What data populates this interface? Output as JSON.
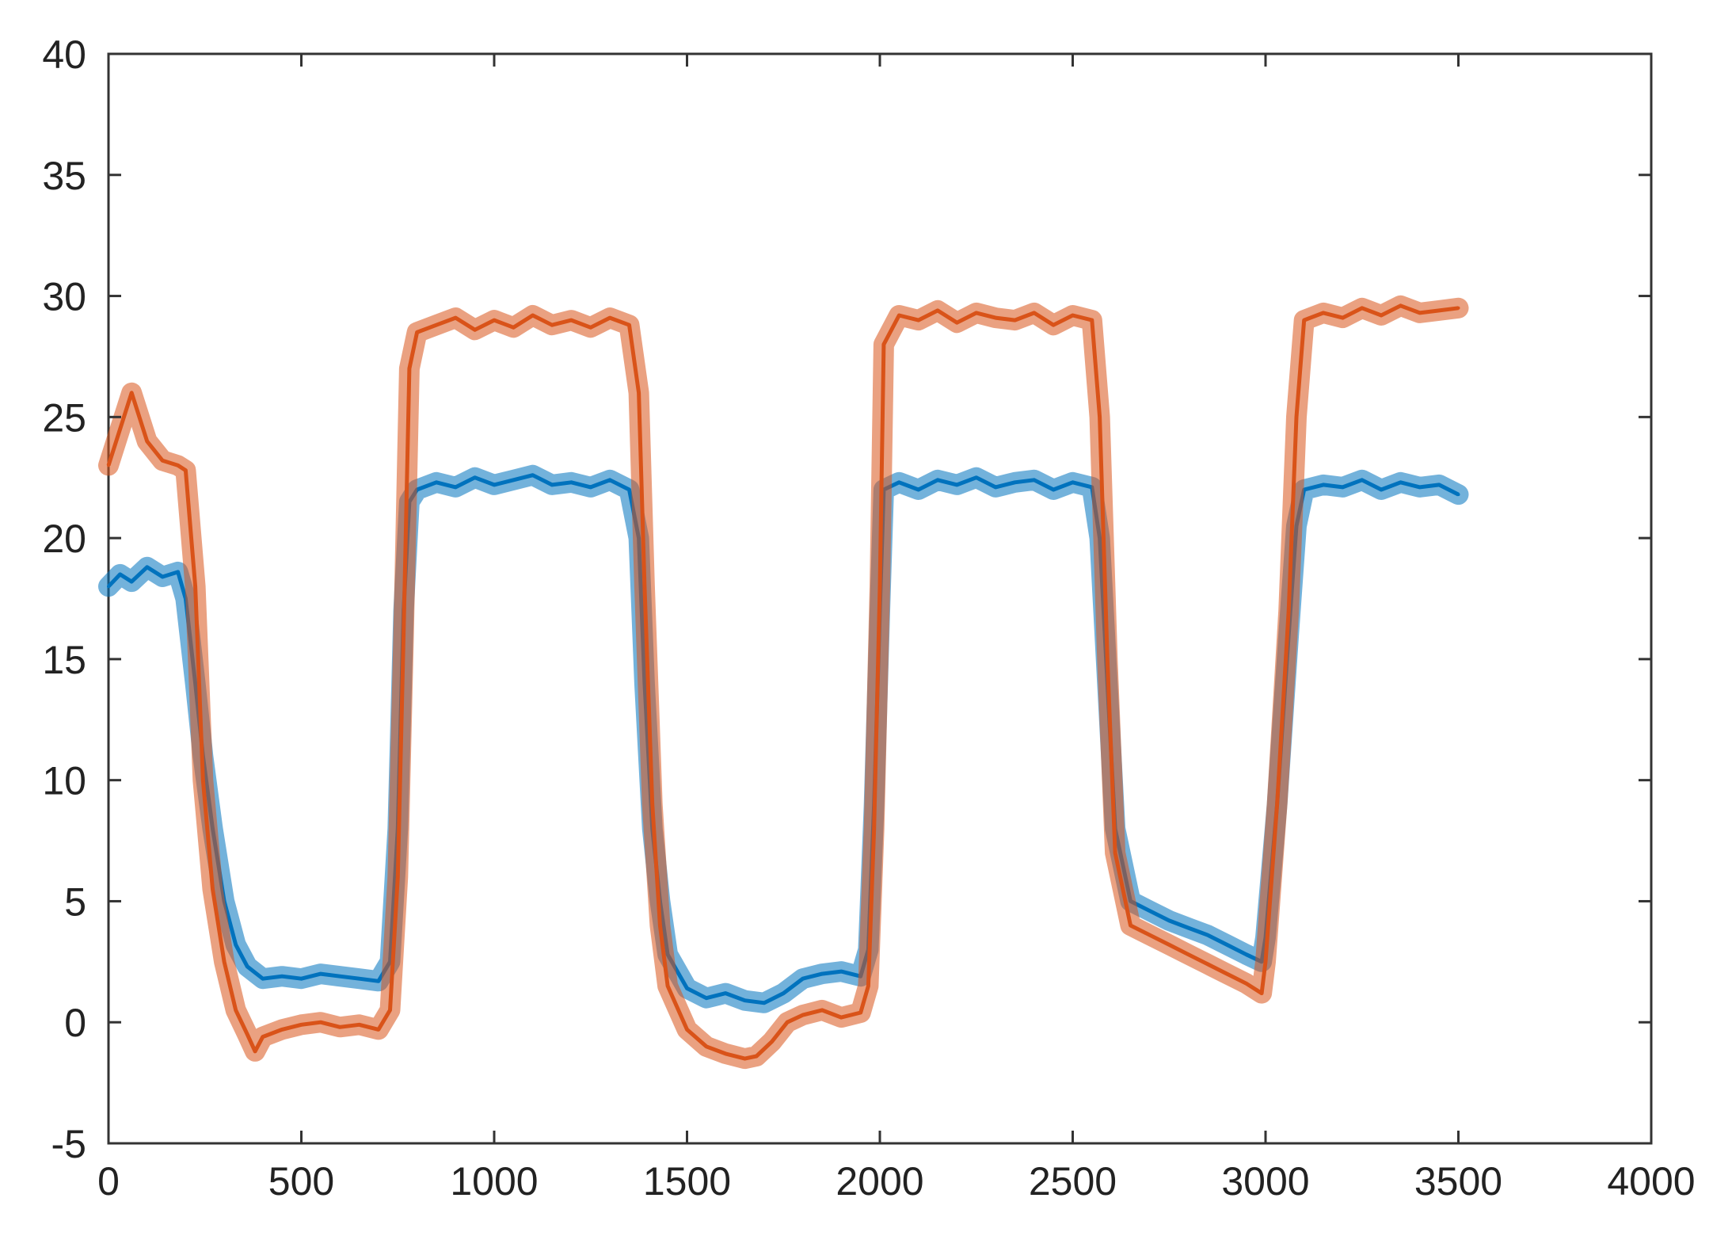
{
  "chart_data": {
    "type": "line",
    "title": "",
    "xlabel": "",
    "ylabel": "",
    "xlim": [
      0,
      4000
    ],
    "ylim": [
      -5,
      40
    ],
    "xticks": [
      0,
      500,
      1000,
      1500,
      2000,
      2500,
      3000,
      3500,
      4000
    ],
    "yticks": [
      -5,
      0,
      5,
      10,
      15,
      20,
      25,
      30,
      35,
      40
    ],
    "xtick_labels": [
      "0",
      "500",
      "1000",
      "1500",
      "2000",
      "2500",
      "3000",
      "3500",
      "4000"
    ],
    "ytick_labels": [
      "-5",
      "0",
      "5",
      "10",
      "15",
      "20",
      "25",
      "30",
      "35",
      "40"
    ],
    "grid": false,
    "legend": "none",
    "series": [
      {
        "color": "#0072BD",
        "x": [
          0,
          30,
          60,
          100,
          140,
          180,
          200,
          225,
          245,
          270,
          300,
          330,
          360,
          400,
          450,
          500,
          550,
          600,
          650,
          700,
          730,
          750,
          765,
          780,
          800,
          850,
          900,
          950,
          1000,
          1050,
          1100,
          1150,
          1200,
          1250,
          1300,
          1350,
          1375,
          1390,
          1410,
          1430,
          1450,
          1500,
          1550,
          1600,
          1650,
          1700,
          1750,
          1800,
          1850,
          1900,
          1950,
          1970,
          1985,
          2000,
          2010,
          2050,
          2100,
          2150,
          2200,
          2250,
          2300,
          2350,
          2400,
          2450,
          2500,
          2550,
          2570,
          2590,
          2610,
          2650,
          2700,
          2750,
          2800,
          2850,
          2900,
          2950,
          2990,
          3000,
          3030,
          3060,
          3080,
          3100,
          3150,
          3200,
          3250,
          3300,
          3350,
          3400,
          3450,
          3500
        ],
        "y": [
          18,
          18.5,
          18.2,
          18.8,
          18.4,
          18.6,
          17.5,
          14,
          11,
          8,
          5,
          3.2,
          2.3,
          1.8,
          1.9,
          1.8,
          2.0,
          1.9,
          1.8,
          1.7,
          2.5,
          8,
          17,
          21.5,
          22,
          22.3,
          22.1,
          22.5,
          22.2,
          22.4,
          22.6,
          22.2,
          22.3,
          22.1,
          22.4,
          22.0,
          20,
          14,
          8,
          5,
          2.8,
          1.4,
          1.0,
          1.2,
          0.9,
          0.8,
          1.2,
          1.8,
          2.0,
          2.1,
          1.9,
          3,
          9,
          17,
          22,
          22.3,
          22.0,
          22.4,
          22.2,
          22.5,
          22.1,
          22.3,
          22.4,
          22.0,
          22.3,
          22.1,
          20,
          14,
          8,
          5,
          4.6,
          4.2,
          3.9,
          3.6,
          3.2,
          2.8,
          2.5,
          3.5,
          9,
          16,
          20.5,
          22,
          22.2,
          22.1,
          22.4,
          22.0,
          22.3,
          22.1,
          22.2,
          21.8
        ]
      },
      {
        "color": "#D95319",
        "x": [
          0,
          30,
          60,
          100,
          140,
          180,
          200,
          225,
          245,
          270,
          300,
          330,
          360,
          380,
          400,
          450,
          500,
          550,
          600,
          650,
          700,
          730,
          750,
          765,
          780,
          800,
          850,
          900,
          950,
          1000,
          1050,
          1100,
          1150,
          1200,
          1250,
          1300,
          1350,
          1375,
          1390,
          1410,
          1430,
          1450,
          1500,
          1550,
          1600,
          1650,
          1680,
          1720,
          1760,
          1800,
          1850,
          1900,
          1950,
          1970,
          1985,
          2000,
          2010,
          2050,
          2100,
          2150,
          2200,
          2250,
          2300,
          2350,
          2400,
          2450,
          2500,
          2550,
          2570,
          2590,
          2610,
          2650,
          2700,
          2750,
          2800,
          2850,
          2900,
          2950,
          2990,
          3000,
          3030,
          3060,
          3080,
          3100,
          3150,
          3200,
          3250,
          3300,
          3350,
          3400,
          3450,
          3500
        ],
        "y": [
          23,
          24.5,
          26,
          24,
          23.2,
          23.0,
          22.8,
          18,
          10,
          5.5,
          2.5,
          0.5,
          -0.5,
          -1.2,
          -0.6,
          -0.3,
          -0.1,
          0.0,
          -0.2,
          -0.1,
          -0.3,
          0.5,
          6,
          16,
          27,
          28.5,
          28.8,
          29.1,
          28.6,
          29.0,
          28.7,
          29.2,
          28.8,
          29.0,
          28.7,
          29.1,
          28.8,
          26,
          18,
          9,
          4,
          1.5,
          -0.3,
          -1.0,
          -1.3,
          -1.5,
          -1.4,
          -0.8,
          0.0,
          0.3,
          0.5,
          0.2,
          0.4,
          1.5,
          8,
          18,
          28,
          29.2,
          29.0,
          29.4,
          28.9,
          29.3,
          29.1,
          29.0,
          29.3,
          28.8,
          29.2,
          29.0,
          25,
          15,
          7,
          4,
          3.6,
          3.2,
          2.8,
          2.4,
          2.0,
          1.6,
          1.2,
          2.5,
          9,
          17,
          25,
          29,
          29.3,
          29.1,
          29.5,
          29.2,
          29.6,
          29.3,
          29.4,
          29.5
        ]
      }
    ]
  }
}
